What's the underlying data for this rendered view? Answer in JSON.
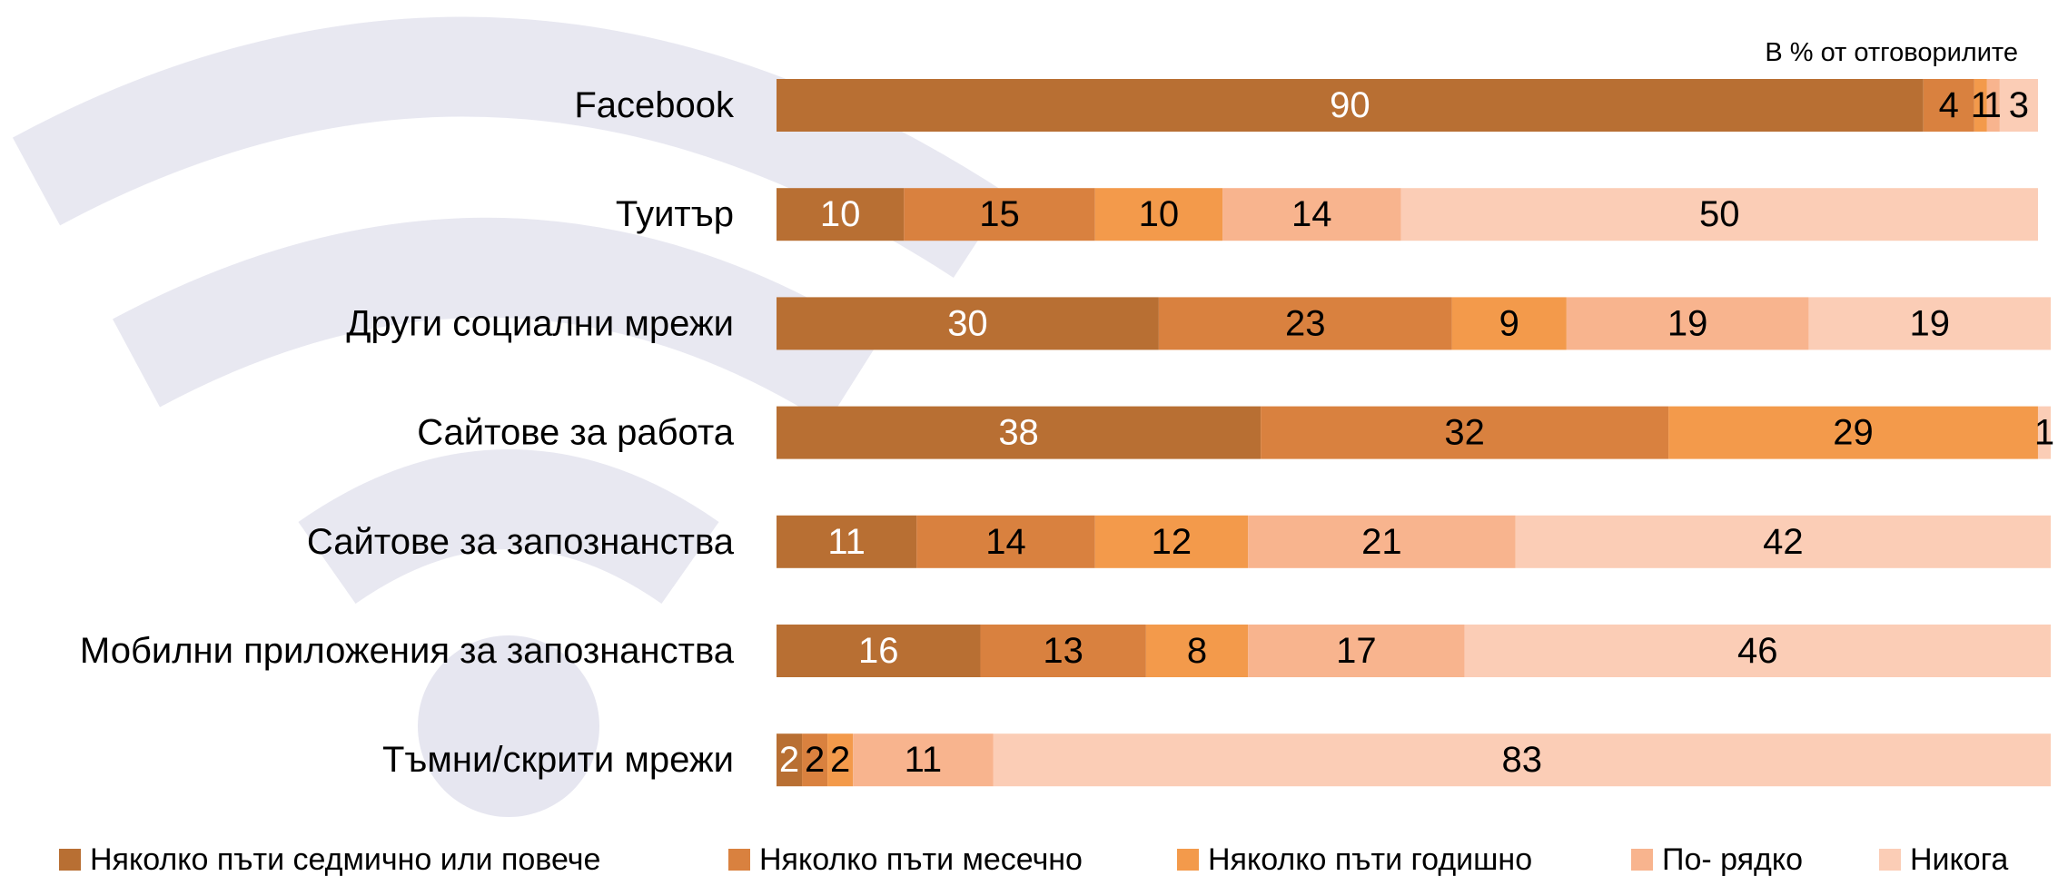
{
  "chart_data": {
    "type": "stacked-bar-horizontal",
    "note": "В % от отговорилите",
    "categories": [
      "Facebook",
      "Туитър",
      "Други социални мрежи",
      "Сайтове за работа",
      "Сайтове за запознанства",
      "Мобилни приложения за запознанства",
      "Тъмни/скрити мрежи"
    ],
    "series": [
      {
        "name": "Няколко пъти седмично или повече",
        "color": "#b86f33",
        "values": [
          90,
          10,
          30,
          38,
          11,
          16,
          2
        ]
      },
      {
        "name": "Няколко пъти месечно",
        "color": "#d9813f",
        "values": [
          4,
          15,
          23,
          32,
          14,
          13,
          2
        ]
      },
      {
        "name": "Няколко пъти годишно",
        "color": "#f39a4b",
        "values": [
          1,
          10,
          9,
          29,
          12,
          8,
          2
        ]
      },
      {
        "name": "По- рядко",
        "color": "#f8b48e",
        "values": [
          1,
          14,
          19,
          null,
          21,
          17,
          11
        ]
      },
      {
        "name": "Никога",
        "color": "#fbcdb6",
        "values": [
          3,
          50,
          19,
          1,
          42,
          46,
          83
        ]
      }
    ],
    "xlim": [
      0,
      100
    ]
  }
}
